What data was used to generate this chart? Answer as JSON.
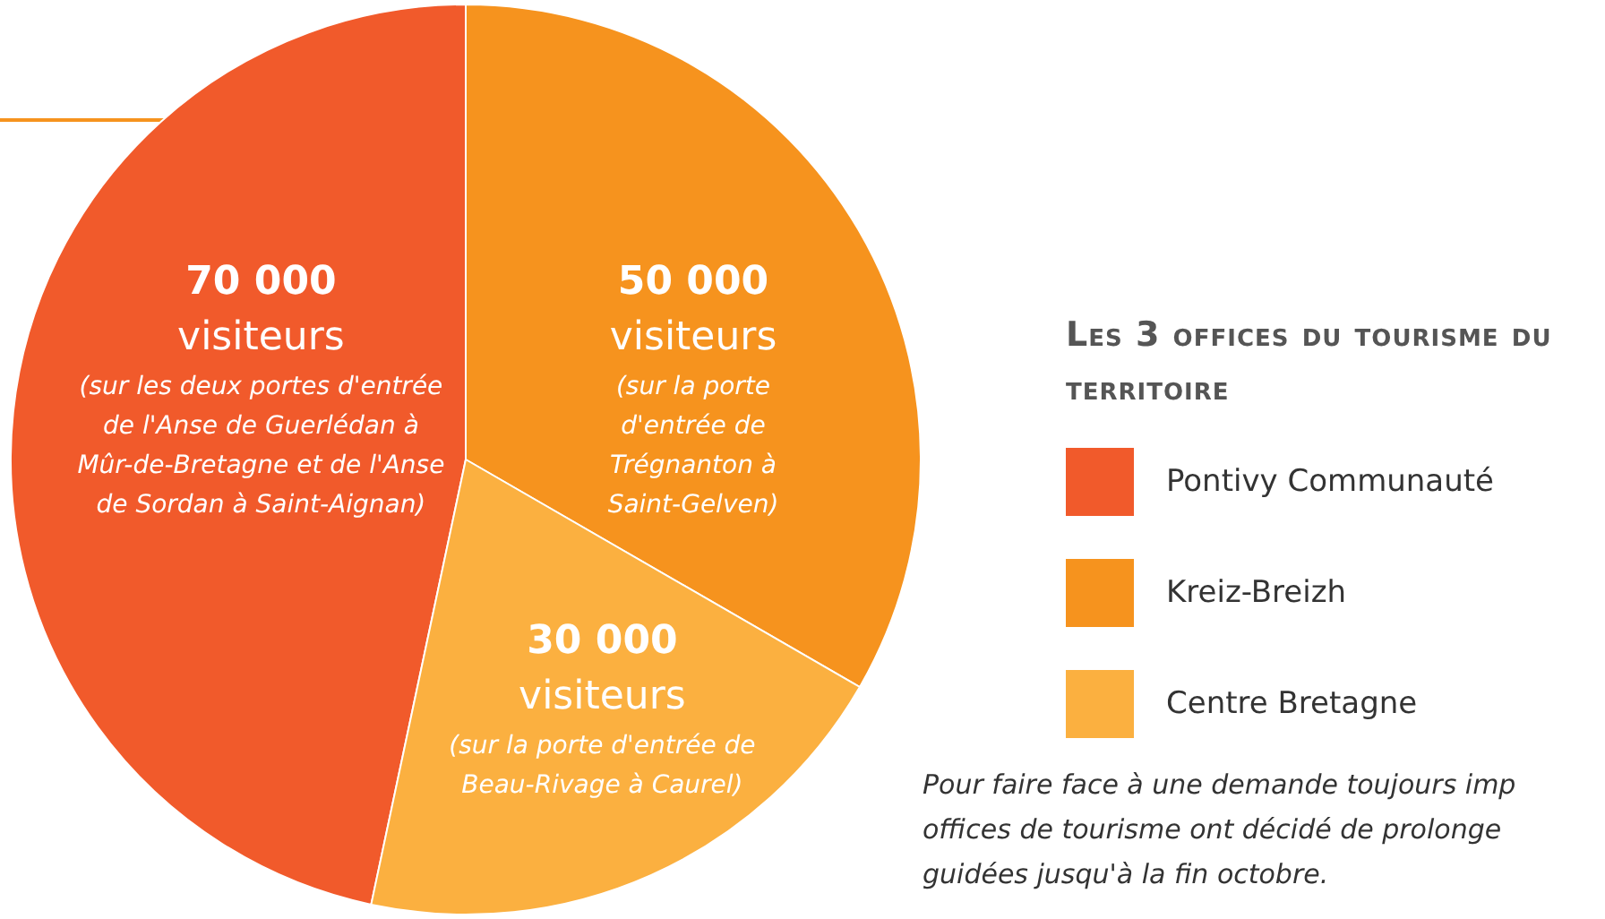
{
  "chart_data": {
    "type": "pie",
    "legend_title": "Les 3 offices du tourisme du territoire",
    "legend": "right",
    "categories": [
      "Pontivy Communauté",
      "Kreiz-Breizh",
      "Centre Bretagne"
    ],
    "values": [
      70000,
      50000,
      30000
    ],
    "colors": [
      "#f15a2b",
      "#f6931e",
      "#fbb040"
    ],
    "value_labels": [
      "70 000\nvisiteurs",
      "50 000\nvisiteurs",
      "30 000\nvisiteurs"
    ],
    "annotations": [
      {
        "text": "(sur les deux portes d'entrée de l'Anse de Guerlédan à Mûr-de-Bretagne et de l'Anse de Sordan à Saint-Aignan)",
        "x": "Pontivy Communauté"
      },
      {
        "text": "(sur la porte d'entrée de Trégnanton à Saint-Gelven)",
        "x": "Kreiz-Breizh"
      },
      {
        "text": "(sur la porte d'entrée de Beau-Rivage à Caurel)",
        "x": "Centre Bretagne"
      },
      "Pour faire face à une demande toujours imp offices de tourisme ont décidé de prolonge guidées jusqu'à la fin octobre."
    ]
  }
}
